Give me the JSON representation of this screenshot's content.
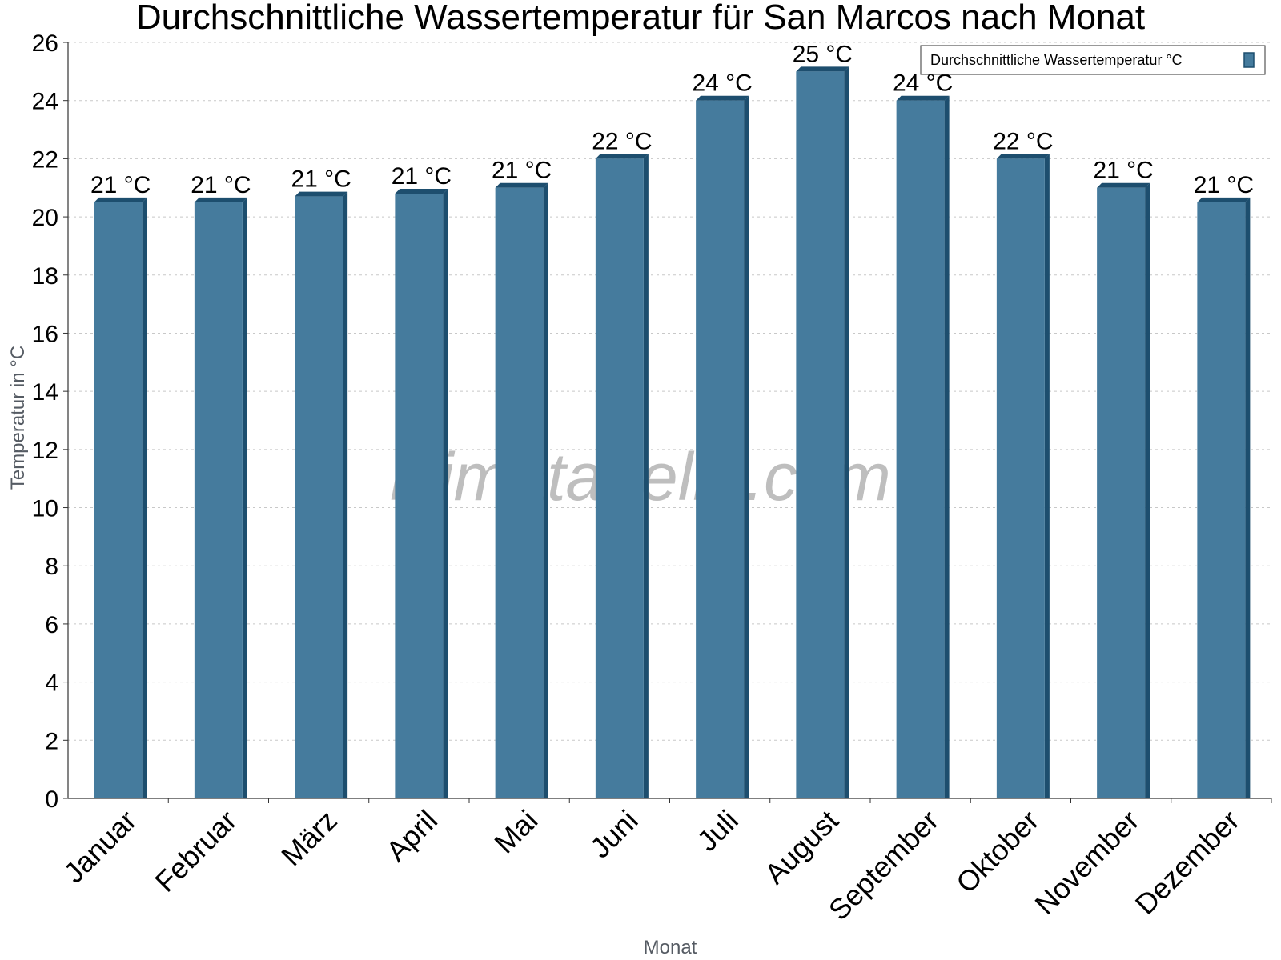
{
  "chart_data": {
    "type": "bar",
    "title": "Durchschnittliche Wassertemperatur für San Marcos nach Monat",
    "xlabel": "Monat",
    "ylabel": "Temperatur in °C",
    "ylim": [
      0,
      26
    ],
    "yticks": [
      0,
      2,
      4,
      6,
      8,
      10,
      12,
      14,
      16,
      18,
      20,
      22,
      24,
      26
    ],
    "grid": true,
    "legend_position": "top-right",
    "categories": [
      "Januar",
      "Februar",
      "März",
      "April",
      "Mai",
      "Juni",
      "Juli",
      "August",
      "September",
      "Oktober",
      "November",
      "Dezember"
    ],
    "series": [
      {
        "name": "Durchschnittliche Wassertemperatur °C",
        "values": [
          20.5,
          20.5,
          20.7,
          20.8,
          21.0,
          22.0,
          24.0,
          25.0,
          24.0,
          22.0,
          21.0,
          20.5
        ],
        "labels": [
          "21 °C",
          "21 °C",
          "21 °C",
          "21 °C",
          "21 °C",
          "22 °C",
          "24 °C",
          "25 °C",
          "24 °C",
          "22 °C",
          "21 °C",
          "21 °C"
        ],
        "color": "#457b9d",
        "edge_color": "#1d4e6e"
      }
    ],
    "watermark": "klimatabelle.com"
  }
}
